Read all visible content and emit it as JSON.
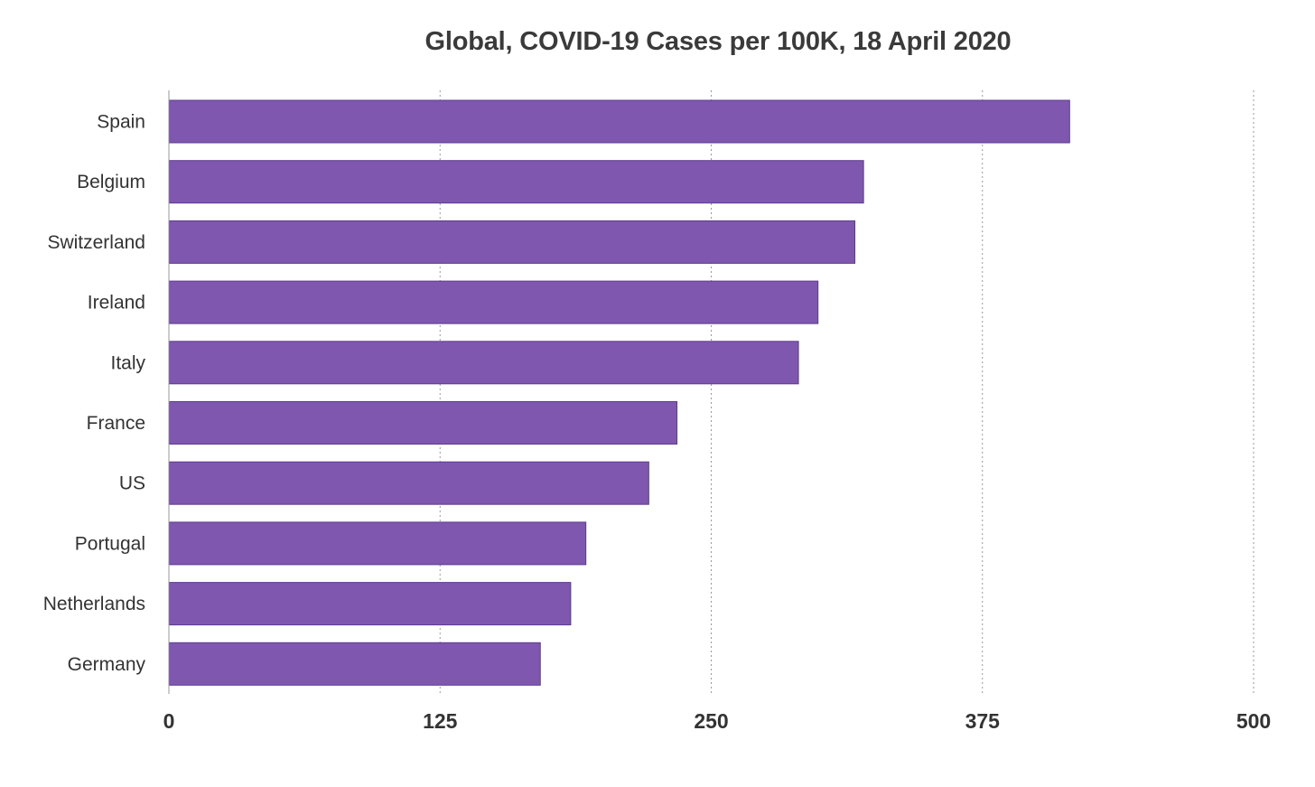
{
  "chart_data": {
    "type": "bar",
    "orientation": "horizontal",
    "title": "Global, COVID-19 Cases per 100K, 18 April 2020",
    "categories": [
      "Spain",
      "Belgium",
      "Switzerland",
      "Ireland",
      "Italy",
      "France",
      "US",
      "Portugal",
      "Netherlands",
      "Germany"
    ],
    "values": [
      415,
      320,
      316,
      299,
      290,
      234,
      221,
      192,
      185,
      171
    ],
    "xlim": [
      0,
      500
    ],
    "xticks": [
      0,
      125,
      250,
      375,
      500
    ],
    "xtick_labels": [
      "0",
      "125",
      "250",
      "375",
      "500"
    ],
    "grid": true,
    "legend": "none",
    "colors": {
      "bar_fill": "#7f57ae",
      "bar_stroke": "#5e3a8f",
      "text": "#333333"
    }
  }
}
